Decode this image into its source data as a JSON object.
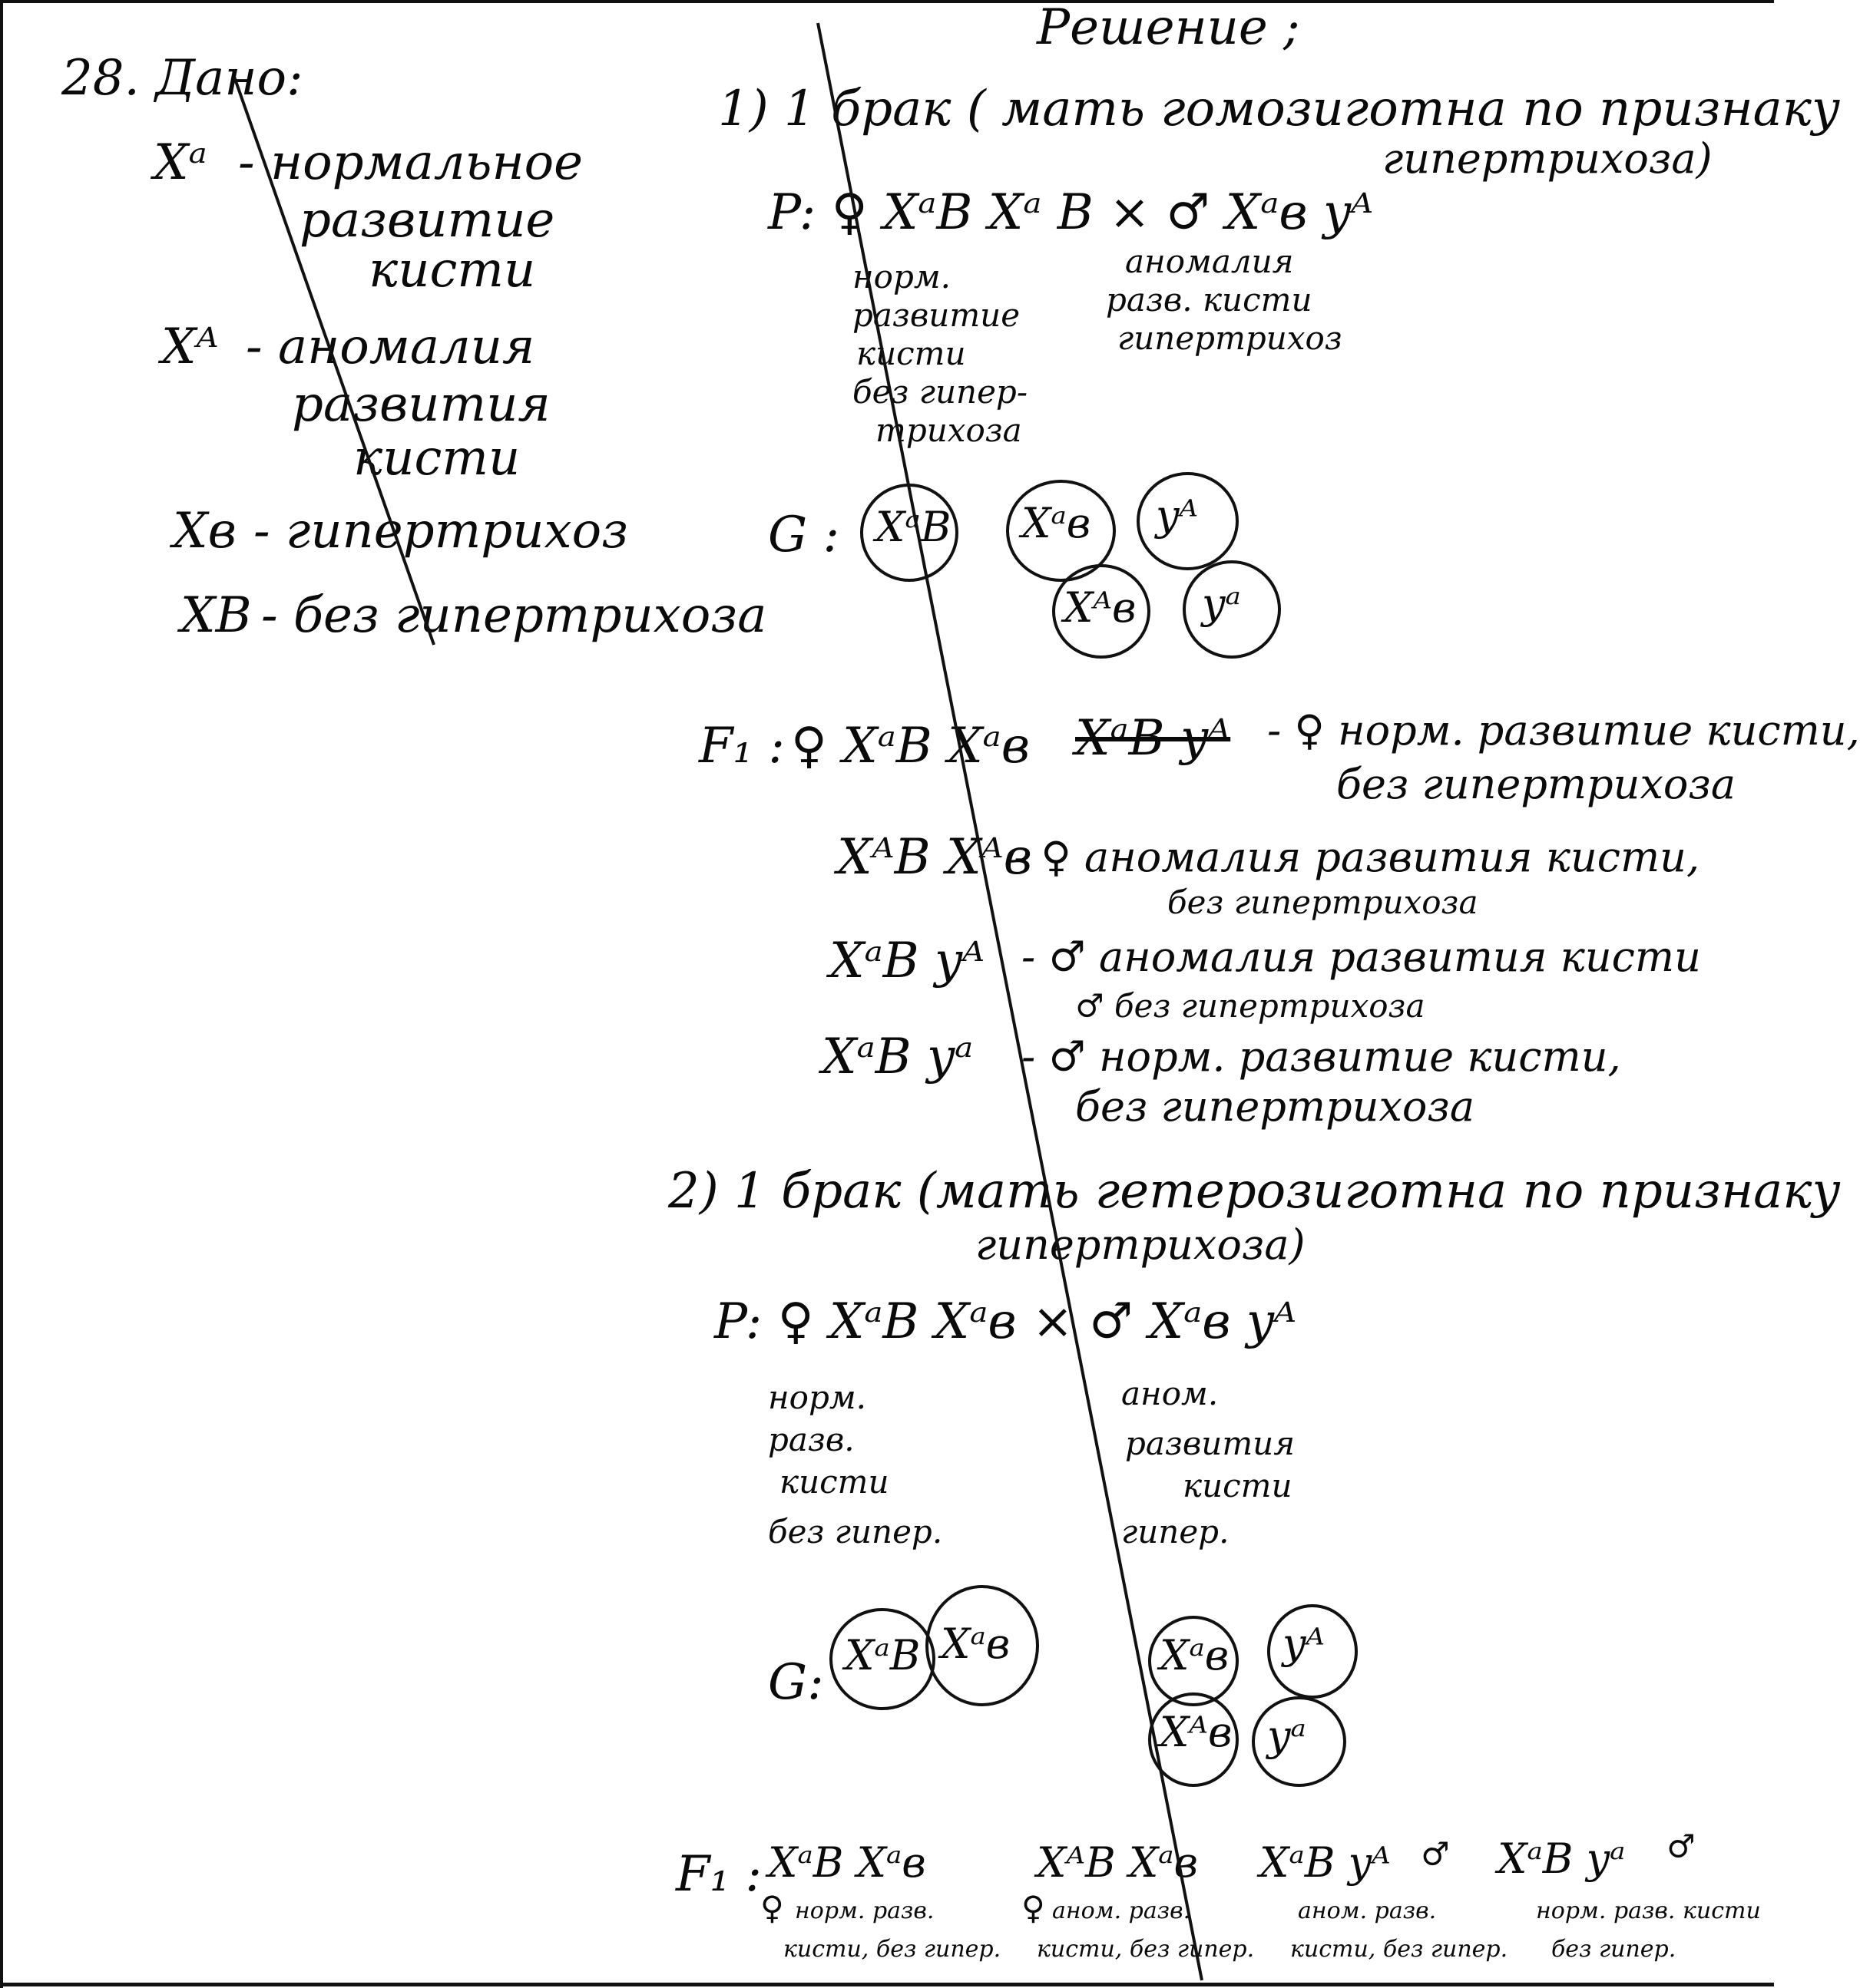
{
  "header": {
    "solution_title": "Решение ;"
  },
  "given": {
    "title": "28. Дано:",
    "items": [
      {
        "symbol": "Xᵃ",
        "text_lines": [
          "- нормальное",
          "развитие",
          "кисти"
        ]
      },
      {
        "symbol": "Xᴬ",
        "text_lines": [
          "- аномалия",
          "развития",
          "кисти"
        ]
      },
      {
        "symbol": "Xв",
        "text_lines": [
          "- гипертрихоз"
        ]
      },
      {
        "symbol": "XB",
        "text_lines": [
          "- без гипертрихоза"
        ]
      }
    ]
  },
  "marriage1": {
    "heading_line1": "1) 1 брак ( мать гомозиготна по признаку",
    "heading_line2": "гипертрихоза)",
    "parents": "P: ♀ XᵃB Xᵃ B   ×  ♂ Xᵃв yᴬ",
    "mother_note": [
      "норм.",
      "развитие",
      "кисти",
      "без гипер-",
      "трихоза"
    ],
    "father_note": [
      "аномалия",
      "разв. кисти",
      "гипертрихоз"
    ],
    "gametes_label": "G :",
    "gametes": [
      "XᵃB",
      "Xᵃв",
      "yᴬ",
      "Xᴬв",
      "yᵃ"
    ],
    "f1_label": "F₁ :",
    "f1_rows": [
      {
        "genotype": "♀ XᵃB Xᵃв",
        "struck": "XᵃB yᴬ",
        "note": "- ♀ норм. развитие кисти,",
        "note2": "без гипертрихоза"
      },
      {
        "genotype": "XᴬB Xᴬв",
        "note": "- ♀ аномалия развития кисти,",
        "note2": "без гипертрихоза"
      },
      {
        "genotype": "XᵃB yᴬ",
        "note": "- ♂ аномалия развития кисти",
        "note2": "♂ без гипертрихоза"
      },
      {
        "genotype": "XᵃB yᵃ",
        "note": "- ♂ норм. развитие кисти,",
        "note2": "без гипертрихоза"
      }
    ]
  },
  "marriage2": {
    "heading_line1": "2) 1 брак (мать гетерозиготна по признаку",
    "heading_line2": "гипертрихоза)",
    "parents": "P: ♀ XᵃB Xᵃв   ×  ♂ Xᵃв yᴬ",
    "mother_note": [
      "норм.",
      "разв.",
      "кисти",
      "без гипер."
    ],
    "father_note": [
      "аном.",
      "развития",
      "кисти",
      "гипер."
    ],
    "gametes_label": "G:",
    "gametes": [
      "XᵃB",
      "Xᵃв",
      "Xᵃв",
      "yᴬ",
      "Xᴬв",
      "yᵃ"
    ],
    "f1_label": "F₁ :",
    "f1_items": [
      {
        "genotype": "XᵃB Xᵃв",
        "sex": "♀",
        "note": [
          "норм. разв.",
          "кисти, без гипер."
        ]
      },
      {
        "genotype": "XᴬB Xᵃв",
        "sex": "♀",
        "note": [
          "аном. разв.",
          "кисти, без гипер."
        ]
      },
      {
        "genotype": "XᵃB yᴬ",
        "sex": "♂",
        "note": [
          "аном. разв.",
          "кисти, без гипер."
        ]
      },
      {
        "genotype": "XᵃB yᵃ",
        "sex": "♂",
        "note": [
          "норм. разв. кисти",
          "без гипер."
        ]
      }
    ]
  }
}
